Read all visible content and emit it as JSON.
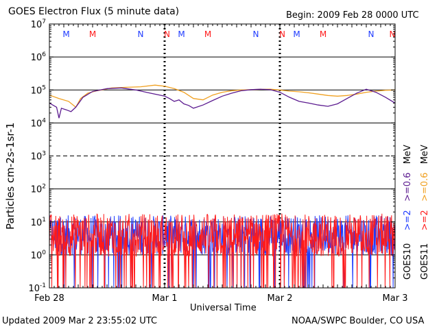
{
  "header": {
    "title": "GOES Electron Flux (5 minute data)",
    "begin": "Begin: 2009 Feb 28 0000 UTC"
  },
  "footer": {
    "updated": "Updated 2009 Mar  2 23:55:02 UTC",
    "credit": "NOAA/SWPC Boulder, CO USA"
  },
  "legend": {
    "goes11_series_high": ">=2",
    "goes11_series_low": ">=0.6",
    "goes10_series_high": ">=2",
    "goes10_series_low": ">=0.6",
    "unit": "MeV",
    "goes10_label": "GOES10",
    "goes11_label": "GOES11",
    "colors": {
      "goes10_high": "#1f3bff",
      "goes10_low": "#5b1a8f",
      "goes11_high": "#ff1a1a",
      "goes11_low": "#f0a020"
    }
  },
  "chart_data": {
    "type": "line",
    "title": "GOES Electron Flux (5 minute data)",
    "xlabel": "Universal Time",
    "ylabel": "Particles cm-2s-1sr-1",
    "yscale": "log",
    "ylim": [
      0.1,
      10000000
    ],
    "xlim": [
      0,
      72
    ],
    "x_unit": "hours since 2009 Feb 28 0000 UTC",
    "x_ticks": [
      {
        "x": 0,
        "label": "Feb 28"
      },
      {
        "x": 24,
        "label": "Mar 1"
      },
      {
        "x": 48,
        "label": "Mar 2"
      },
      {
        "x": 72,
        "label": "Mar 3"
      }
    ],
    "y_ticks": [
      {
        "base": "10",
        "exp": "-1"
      },
      {
        "base": "10",
        "exp": "0"
      },
      {
        "base": "10",
        "exp": "1"
      },
      {
        "base": "10",
        "exp": "2"
      },
      {
        "base": "10",
        "exp": "3"
      },
      {
        "base": "10",
        "exp": "4"
      },
      {
        "base": "10",
        "exp": "5"
      },
      {
        "base": "10",
        "exp": "6"
      },
      {
        "base": "10",
        "exp": "7"
      }
    ],
    "mn_markers": [
      {
        "x": 3.5,
        "label": "M",
        "color": "#1f3bff"
      },
      {
        "x": 9,
        "label": "M",
        "color": "#ff1a1a"
      },
      {
        "x": 19,
        "label": "N",
        "color": "#1f3bff"
      },
      {
        "x": 24.5,
        "label": "N",
        "color": "#ff1a1a"
      },
      {
        "x": 27.5,
        "label": "M",
        "color": "#1f3bff"
      },
      {
        "x": 33,
        "label": "M",
        "color": "#ff1a1a"
      },
      {
        "x": 43,
        "label": "N",
        "color": "#1f3bff"
      },
      {
        "x": 48.5,
        "label": "N",
        "color": "#ff1a1a"
      },
      {
        "x": 51.5,
        "label": "M",
        "color": "#1f3bff"
      },
      {
        "x": 57,
        "label": "M",
        "color": "#ff1a1a"
      },
      {
        "x": 67,
        "label": "N",
        "color": "#1f3bff"
      },
      {
        "x": 72.5,
        "label": "N",
        "color": "#ff1a1a"
      }
    ],
    "series": [
      {
        "name": "GOES11 >=0.6 MeV",
        "color": "#f0a020",
        "x": [
          0,
          2,
          4,
          5.5,
          6.5,
          8,
          10,
          13,
          16,
          19,
          22,
          24,
          26,
          28,
          30,
          32,
          34,
          36,
          38,
          40,
          42,
          44,
          46,
          48,
          50,
          52,
          54,
          56,
          58,
          60,
          62,
          64,
          66,
          68,
          70,
          72
        ],
        "y": [
          70000,
          55000,
          45000,
          30000,
          55000,
          80000,
          95000,
          115000,
          120000,
          125000,
          140000,
          130000,
          110000,
          85000,
          55000,
          50000,
          70000,
          85000,
          95000,
          100000,
          102000,
          104000,
          105000,
          100000,
          92000,
          88000,
          82000,
          75000,
          68000,
          65000,
          68000,
          75000,
          85000,
          92000,
          98000,
          100000
        ]
      },
      {
        "name": "GOES10 >=0.6 MeV",
        "color": "#5b1a8f",
        "x": [
          0,
          1.5,
          2,
          2.5,
          3.5,
          4.5,
          5.5,
          7,
          9,
          12,
          15,
          18,
          21,
          24,
          25,
          26,
          27,
          28,
          29,
          30,
          32,
          34,
          36,
          38,
          40,
          42,
          44,
          46,
          48,
          50,
          52,
          54,
          56,
          58,
          60,
          62,
          64,
          66,
          68,
          70,
          72
        ],
        "y": [
          40000,
          30000,
          14000,
          28000,
          25000,
          22000,
          30000,
          60000,
          90000,
          110000,
          115000,
          100000,
          80000,
          65000,
          55000,
          45000,
          50000,
          38000,
          34000,
          28000,
          35000,
          48000,
          65000,
          80000,
          95000,
          102000,
          105000,
          102000,
          85000,
          60000,
          45000,
          40000,
          35000,
          32000,
          38000,
          55000,
          80000,
          105000,
          85000,
          60000,
          40000
        ]
      }
    ]
  }
}
